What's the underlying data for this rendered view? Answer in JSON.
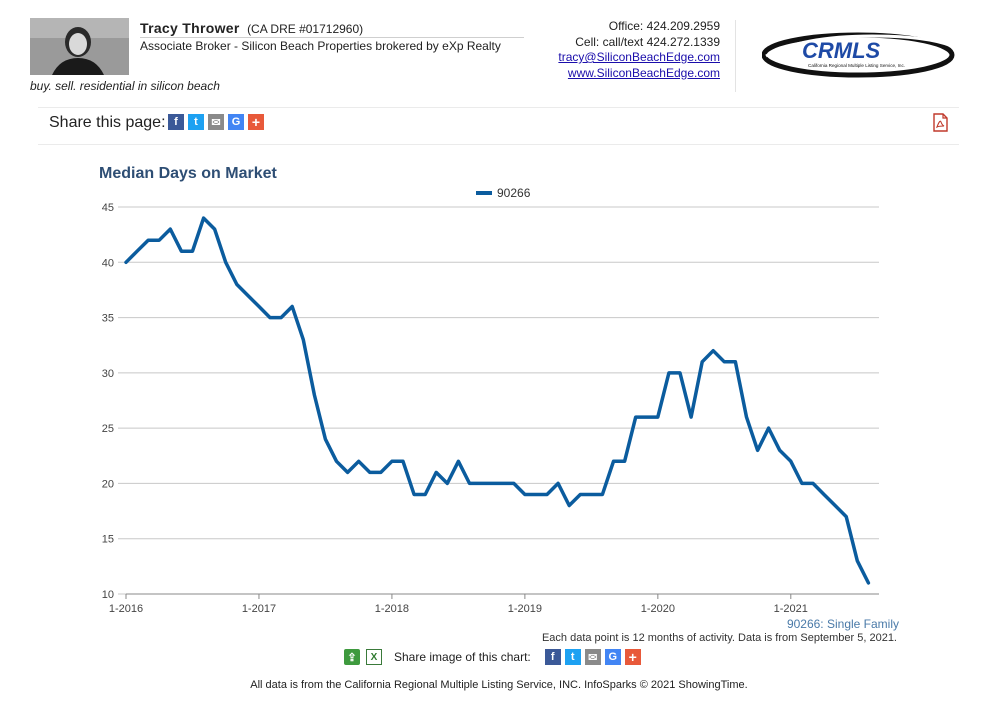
{
  "header": {
    "agent_name": "Tracy Thrower",
    "agent_license": "(CA DRE #01712960)",
    "agent_title": "Associate Broker - Silicon Beach Properties brokered by eXp Realty",
    "tagline": "buy. sell. residential in silicon beach",
    "office_phone": "Office: 424.209.2959",
    "cell_phone": "Cell: call/text 424.272.1339",
    "email": "tracy@SiliconBeachEdge.com",
    "website": "www.SiliconBeachEdge.com",
    "logo_text": "CRMLS",
    "logo_subtext": "California Regional Multiple Listing Service, Inc."
  },
  "share_bar": {
    "label": "Share this page:",
    "icons": [
      "facebook-icon",
      "twitter-icon",
      "email-icon",
      "google-icon",
      "plus-icon"
    ]
  },
  "chart_footer": {
    "series_note": "90266: Single Family",
    "data_note": "Each data point is 12 months of activity. Data is from September 5, 2021.",
    "share_label": "Share image of this chart:",
    "copyright": "All data is from the California Regional Multiple Listing Service, INC. InfoSparks © 2021 ShowingTime."
  },
  "colors": {
    "series": "#0b5c9e",
    "title": "#2e4e74",
    "grid": "#c8c8c8"
  },
  "chart_data": {
    "type": "line",
    "title": "Median Days on Market",
    "xlabel": "",
    "ylabel": "",
    "x_ticks": [
      "1-2016",
      "1-2017",
      "1-2018",
      "1-2019",
      "1-2020",
      "1-2021"
    ],
    "y_ticks": [
      10,
      15,
      20,
      25,
      30,
      35,
      40,
      45
    ],
    "ylim": [
      10,
      45
    ],
    "grid": true,
    "legend_position": "top-center",
    "series": [
      {
        "name": "90266",
        "start": "1-2016",
        "values": [
          40,
          41,
          42,
          42,
          43,
          41,
          41,
          44,
          43,
          40,
          38,
          37,
          36,
          35,
          35,
          36,
          33,
          28,
          24,
          22,
          21,
          22,
          21,
          21,
          22,
          22,
          19,
          19,
          21,
          20,
          22,
          20,
          20,
          20,
          20,
          20,
          19,
          19,
          19,
          20,
          18,
          19,
          19,
          19,
          22,
          22,
          26,
          26,
          26,
          30,
          30,
          26,
          31,
          32,
          31,
          31,
          26,
          23,
          25,
          23,
          22,
          20,
          20,
          19,
          18,
          17,
          13,
          11
        ]
      }
    ]
  }
}
